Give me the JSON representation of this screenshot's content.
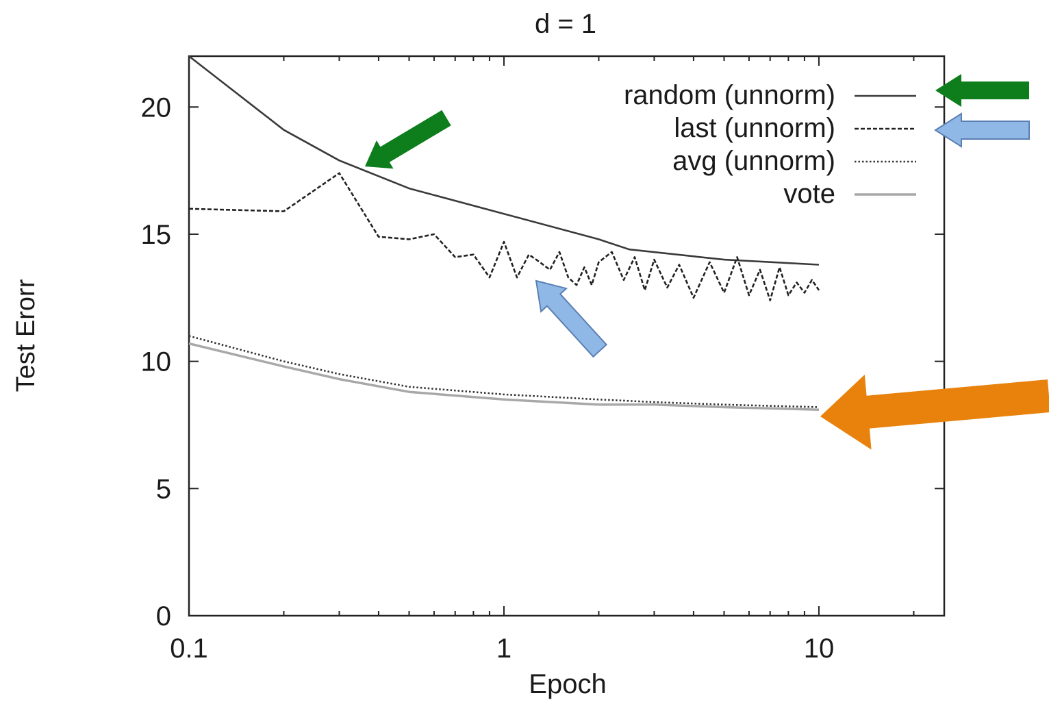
{
  "chart_data": {
    "type": "line",
    "title": "d = 1",
    "xlabel": "Epoch",
    "ylabel": "Test Erorr",
    "x_scale": "log",
    "xlim": [
      0.1,
      25
    ],
    "ylim": [
      0,
      22
    ],
    "xticks": [
      "0.1",
      "1",
      "10"
    ],
    "yticks": [
      "0",
      "5",
      "10",
      "15",
      "20"
    ],
    "grid": false,
    "legend_position": "top-right",
    "series": [
      {
        "name": "random (unnorm)",
        "style": "solid",
        "color": "#3a3a3a",
        "x": [
          0.1,
          0.2,
          0.3,
          0.5,
          1,
          2,
          2.5,
          5,
          10
        ],
        "y": [
          22,
          19.1,
          17.9,
          16.8,
          15.8,
          14.8,
          14.4,
          14.0,
          13.8
        ]
      },
      {
        "name": "last (unnorm)",
        "style": "dashed",
        "color": "#222222",
        "x": [
          0.1,
          0.2,
          0.3,
          0.4,
          0.5,
          0.6,
          0.7,
          0.8,
          0.9,
          1.0,
          1.1,
          1.2,
          1.3,
          1.4,
          1.5,
          1.6,
          1.7,
          1.8,
          1.9,
          2.0,
          2.2,
          2.4,
          2.6,
          2.8,
          3.0,
          3.3,
          3.6,
          4.0,
          4.5,
          5.0,
          5.5,
          6.0,
          6.5,
          7.0,
          7.5,
          8.0,
          8.5,
          9.0,
          9.5,
          10.0
        ],
        "y": [
          16.0,
          15.9,
          17.4,
          14.9,
          14.8,
          15.0,
          14.1,
          14.2,
          13.3,
          14.7,
          13.3,
          14.2,
          13.9,
          13.6,
          14.3,
          13.3,
          13.0,
          13.7,
          13.0,
          13.9,
          14.3,
          13.2,
          14.1,
          12.8,
          14.0,
          12.9,
          13.8,
          12.5,
          13.9,
          12.7,
          14.1,
          12.6,
          13.6,
          12.4,
          13.7,
          12.6,
          13.1,
          12.7,
          13.2,
          12.8
        ]
      },
      {
        "name": "avg (unnorm)",
        "style": "dotted",
        "color": "#333333",
        "x": [
          0.1,
          0.2,
          0.3,
          0.5,
          1,
          2,
          3,
          5,
          10
        ],
        "y": [
          11.0,
          10.0,
          9.5,
          9.0,
          8.7,
          8.5,
          8.4,
          8.3,
          8.2
        ]
      },
      {
        "name": "vote",
        "style": "solid",
        "color": "#a8a8a8",
        "x": [
          0.1,
          0.2,
          0.3,
          0.5,
          1,
          2,
          3,
          5,
          10
        ],
        "y": [
          10.7,
          9.8,
          9.3,
          8.8,
          8.5,
          8.3,
          8.3,
          8.2,
          8.1
        ]
      }
    ],
    "annotations": [
      {
        "name": "green-arrow-curve",
        "color": "#0e7d1b"
      },
      {
        "name": "blue-arrow-curve",
        "color": "#8fb8e6"
      },
      {
        "name": "green-arrow-legend",
        "color": "#0e7d1b"
      },
      {
        "name": "blue-arrow-legend",
        "color": "#8fb8e6"
      },
      {
        "name": "orange-arrow",
        "color": "#e8820c"
      }
    ]
  }
}
